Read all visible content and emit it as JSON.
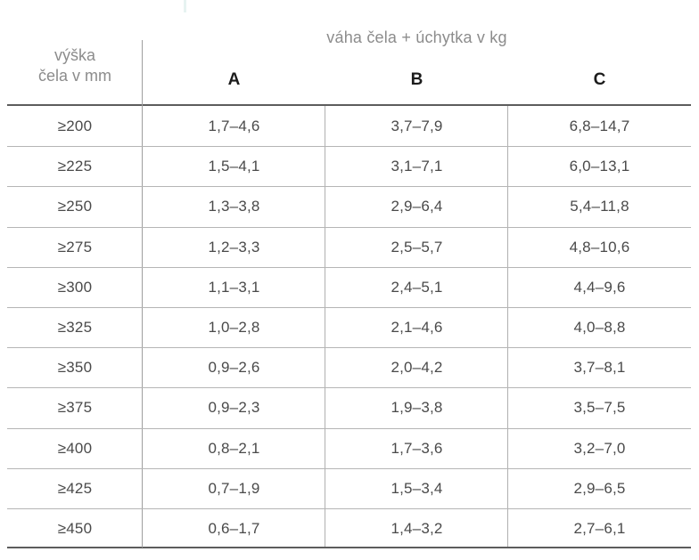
{
  "table": {
    "title": "váha čela + úchytka v kg",
    "row_header_line1": "výška",
    "row_header_line2": "čela v mm",
    "columns": [
      "A",
      "B",
      "C"
    ],
    "rows": [
      {
        "label": "≥200",
        "values": [
          "1,7–4,6",
          "3,7–7,9",
          "6,8–14,7"
        ]
      },
      {
        "label": "≥225",
        "values": [
          "1,5–4,1",
          "3,1–7,1",
          "6,0–13,1"
        ]
      },
      {
        "label": "≥250",
        "values": [
          "1,3–3,8",
          "2,9–6,4",
          "5,4–11,8"
        ]
      },
      {
        "label": "≥275",
        "values": [
          "1,2–3,3",
          "2,5–5,7",
          "4,8–10,6"
        ]
      },
      {
        "label": "≥300",
        "values": [
          "1,1–3,1",
          "2,4–5,1",
          "4,4–9,6"
        ]
      },
      {
        "label": "≥325",
        "values": [
          "1,0–2,8",
          "2,1–4,6",
          "4,0–8,8"
        ]
      },
      {
        "label": "≥350",
        "values": [
          "0,9–2,6",
          "2,0–4,2",
          "3,7–8,1"
        ]
      },
      {
        "label": "≥375",
        "values": [
          "0,9–2,3",
          "1,9–3,8",
          "3,5–7,5"
        ]
      },
      {
        "label": "≥400",
        "values": [
          "0,8–2,1",
          "1,7–3,6",
          "3,2–7,0"
        ]
      },
      {
        "label": "≥425",
        "values": [
          "0,7–1,9",
          "1,5–3,4",
          "2,9–6,5"
        ]
      },
      {
        "label": "≥450",
        "values": [
          "0,6–1,7",
          "1,4–3,2",
          "2,7–6,1"
        ]
      }
    ]
  },
  "colors": {
    "heading_text": "#8c8c8c",
    "column_letter_text": "#1c1c1c",
    "cell_text": "#4a4a4a",
    "strong_rule": "#5c5c5c",
    "light_rule": "#b5b5b5",
    "background": "#ffffff"
  }
}
